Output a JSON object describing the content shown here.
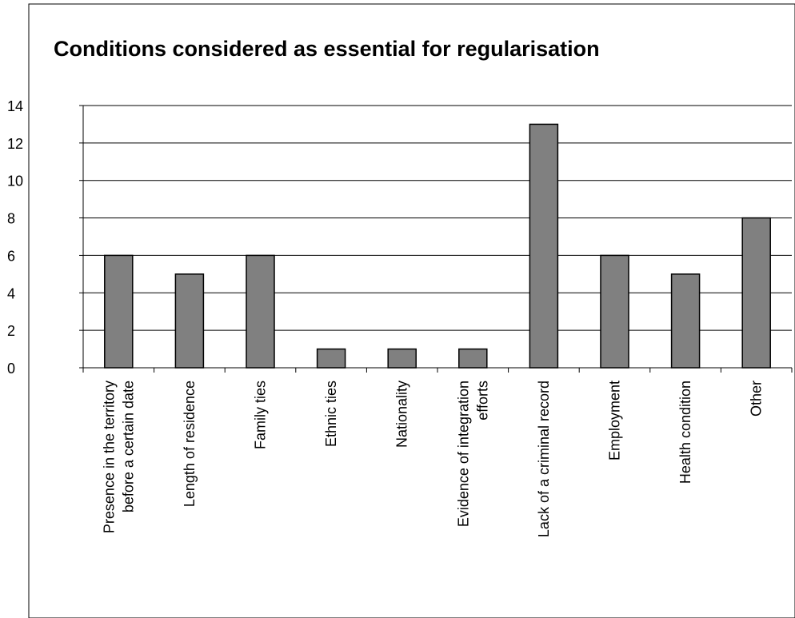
{
  "chart_data": {
    "type": "bar",
    "title": "Conditions considered as essential for regularisation",
    "xlabel": "",
    "ylabel": "",
    "ylim": [
      0,
      14
    ],
    "yticks": [
      0,
      2,
      4,
      6,
      8,
      10,
      12,
      14
    ],
    "grid": true,
    "legend": "none",
    "categories": [
      [
        "Presence  in the territory",
        "before a certain date"
      ],
      [
        "Length of residence"
      ],
      [
        "Family  ties"
      ],
      [
        "Ethnic  ties"
      ],
      [
        "Nationality"
      ],
      [
        "Evidence  of integration",
        "efforts"
      ],
      [
        "Lack of a criminal record"
      ],
      [
        "Employment"
      ],
      [
        "Health condition"
      ],
      [
        "Other"
      ]
    ],
    "values": [
      6,
      5,
      6,
      1,
      1,
      1,
      13,
      6,
      5,
      8
    ],
    "colors": {
      "bar": "#808080",
      "bar_stroke": "#000000",
      "grid": "#000000",
      "background": "#ffffff"
    }
  }
}
